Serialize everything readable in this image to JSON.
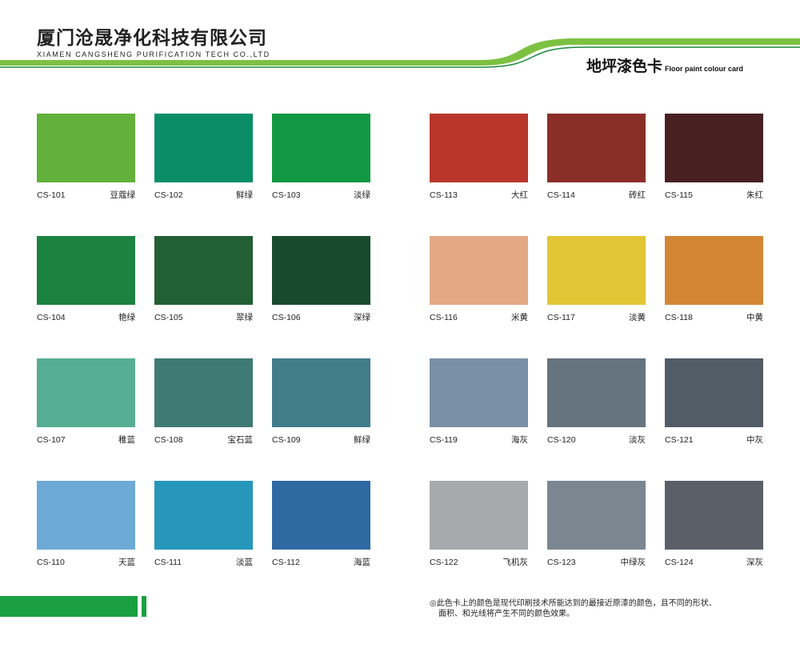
{
  "header": {
    "company_cn": "厦门沧晟净化科技有限公司",
    "company_en": "XIAMEN CANGSHENG PURIFICATION TECH CO.,LTD",
    "card_title_cn": "地坪漆色卡",
    "card_title_en": "Floor paint colour card",
    "accent_color": "#7dc142",
    "dark_green": "#1a8a3a"
  },
  "swatches": [
    {
      "code": "CS-101",
      "name": "豆蔻绿",
      "color": "#62b13a"
    },
    {
      "code": "CS-102",
      "name": "鲜绿",
      "color": "#0b8e68"
    },
    {
      "code": "CS-103",
      "name": "淡绿",
      "color": "#129843"
    },
    {
      "code": "CS-104",
      "name": "艳绿",
      "color": "#1c8240"
    },
    {
      "code": "CS-105",
      "name": "翠绿",
      "color": "#235f35"
    },
    {
      "code": "CS-106",
      "name": "深绿",
      "color": "#1a4a2e"
    },
    {
      "code": "CS-107",
      "name": "稚蓝",
      "color": "#55ae93"
    },
    {
      "code": "CS-108",
      "name": "宝石蓝",
      "color": "#3e7b74"
    },
    {
      "code": "CS-109",
      "name": "鲜绿",
      "color": "#417c8a"
    },
    {
      "code": "CS-110",
      "name": "天蓝",
      "color": "#6eaad6"
    },
    {
      "code": "CS-111",
      "name": "淡蓝",
      "color": "#2697bb"
    },
    {
      "code": "CS-112",
      "name": "海蓝",
      "color": "#2f69a2"
    },
    {
      "code": "CS-113",
      "name": "大红",
      "color": "#b8372a"
    },
    {
      "code": "CS-114",
      "name": "砖红",
      "color": "#8a2e28"
    },
    {
      "code": "CS-115",
      "name": "朱红",
      "color": "#482022"
    },
    {
      "code": "CS-116",
      "name": "米黄",
      "color": "#e3a985"
    },
    {
      "code": "CS-117",
      "name": "淡黄",
      "color": "#e2c635"
    },
    {
      "code": "CS-118",
      "name": "中黄",
      "color": "#d28634"
    },
    {
      "code": "CS-119",
      "name": "海灰",
      "color": "#7990a6"
    },
    {
      "code": "CS-120",
      "name": "淡灰",
      "color": "#66747f"
    },
    {
      "code": "CS-121",
      "name": "中灰",
      "color": "#525c66"
    },
    {
      "code": "CS-122",
      "name": "飞机灰",
      "color": "#a7a9ac"
    },
    {
      "code": "CS-123",
      "name": "中绿灰",
      "color": "#7a8791"
    },
    {
      "code": "CS-124",
      "name": "深灰",
      "color": "#5b6068"
    }
  ],
  "footer": {
    "note_line1": "◎此色卡上的颜色是现代印刷技术所能达到的最接近原漆的颜色，且不同的形状、",
    "note_line2": "面积、和光线将产生不同的颜色效果。"
  }
}
